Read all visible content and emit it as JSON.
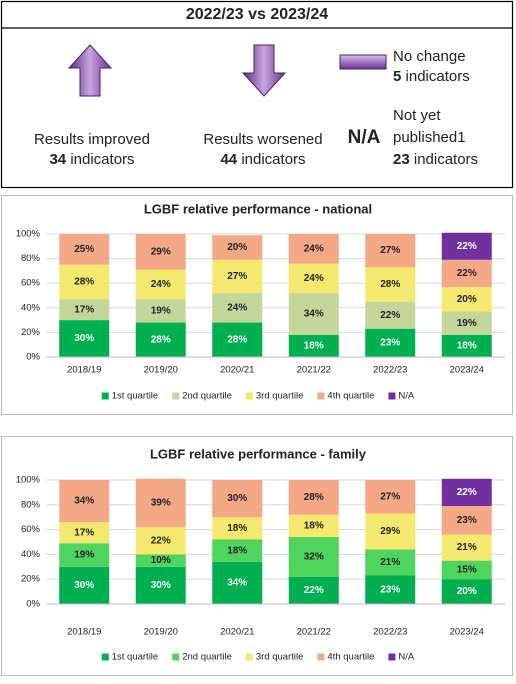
{
  "summary": {
    "title": "2022/23 vs 2023/24",
    "improved": {
      "label": "Results improved",
      "count": 34,
      "unit": "indicators"
    },
    "worsened": {
      "label": "Results worsened",
      "count": 44,
      "unit": "indicators"
    },
    "no_change": {
      "label": "No change",
      "count": 5,
      "unit": "indicators"
    },
    "not_published": {
      "mark": "N/A",
      "lines": [
        "Not yet",
        "published1"
      ],
      "count": 23,
      "unit": "indicators"
    }
  },
  "chart_data": [
    {
      "type": "stacked_bar",
      "title": "LGBF relative performance - national",
      "categories": [
        "2018/19",
        "2019/20",
        "2020/21",
        "2021/22",
        "2022/23",
        "2023/24"
      ],
      "ylim": [
        0,
        100
      ],
      "yticks": [
        {
          "value": 0,
          "label": "0%"
        },
        {
          "value": 20,
          "label": "20%"
        },
        {
          "value": 40,
          "label": "40%"
        },
        {
          "value": 60,
          "label": "60%"
        },
        {
          "value": 80,
          "label": "80%"
        },
        {
          "value": 100,
          "label": "100%"
        }
      ],
      "series": [
        {
          "name": "1st quartile",
          "color": "#00b050",
          "label_color": "#ffffff",
          "values": [
            30,
            28,
            28,
            18,
            23,
            18
          ],
          "value_labels": [
            "30%",
            "28%",
            "28%",
            "18%",
            "23%",
            "18%"
          ]
        },
        {
          "name": "2nd quartile",
          "color": "#c4d79b",
          "label_color": "#222222",
          "values": [
            17,
            19,
            24,
            34,
            22,
            19
          ],
          "value_labels": [
            "17%",
            "19%",
            "24%",
            "34%",
            "22%",
            "19%"
          ]
        },
        {
          "name": "3rd quartile",
          "color": "#f5e86e",
          "label_color": "#222222",
          "values": [
            28,
            24,
            27,
            24,
            28,
            20
          ],
          "value_labels": [
            "28%",
            "24%",
            "27%",
            "24%",
            "28%",
            "20%"
          ]
        },
        {
          "name": "4th quartile",
          "color": "#f4a886",
          "label_color": "#222222",
          "values": [
            25,
            29,
            20,
            24,
            27,
            22
          ],
          "value_labels": [
            "25%",
            "29%",
            "20%",
            "24%",
            "27%",
            "22%"
          ]
        },
        {
          "name": "N/A",
          "color": "#7030a0",
          "label_color": "#ffffff",
          "values": [
            null,
            null,
            null,
            null,
            null,
            22
          ],
          "value_labels": [
            null,
            null,
            null,
            null,
            null,
            "22%"
          ]
        }
      ]
    },
    {
      "type": "stacked_bar",
      "title": "LGBF relative performance - family",
      "categories": [
        "2018/19",
        "2019/20",
        "2020/21",
        "2021/22",
        "2022/23",
        "2023/24"
      ],
      "ylim": [
        0,
        100
      ],
      "yticks": [
        {
          "value": 0,
          "label": "0%"
        },
        {
          "value": 20,
          "label": "20%"
        },
        {
          "value": 40,
          "label": "40%"
        },
        {
          "value": 60,
          "label": "60%"
        },
        {
          "value": 80,
          "label": "80%"
        },
        {
          "value": 100,
          "label": "100%"
        }
      ],
      "series": [
        {
          "name": "1st quartile",
          "color": "#00b050",
          "label_color": "#ffffff",
          "values": [
            30,
            30,
            34,
            22,
            23,
            20
          ],
          "value_labels": [
            "30%",
            "30%",
            "34%",
            "22%",
            "23%",
            "20%"
          ]
        },
        {
          "name": "2nd quartile",
          "color": "#4fd45e",
          "label_color": "#222222",
          "values": [
            19,
            10,
            18,
            32,
            21,
            15
          ],
          "value_labels": [
            "19%",
            "10%",
            "18%",
            "32%",
            "21%",
            "15%"
          ]
        },
        {
          "name": "3rd quartile",
          "color": "#f5e86e",
          "label_color": "#222222",
          "values": [
            17,
            22,
            18,
            18,
            29,
            21
          ],
          "value_labels": [
            "17%",
            "22%",
            "18%",
            "18%",
            "29%",
            "21%"
          ]
        },
        {
          "name": "4th quartile",
          "color": "#f4a886",
          "label_color": "#222222",
          "values": [
            34,
            39,
            30,
            28,
            27,
            23
          ],
          "value_labels": [
            "34%",
            "39%",
            "30%",
            "28%",
            "27%",
            "23%"
          ]
        },
        {
          "name": "N/A",
          "color": "#7030a0",
          "label_color": "#ffffff",
          "values": [
            null,
            null,
            null,
            null,
            null,
            22
          ],
          "value_labels": [
            null,
            null,
            null,
            null,
            null,
            "22%"
          ]
        }
      ]
    }
  ]
}
